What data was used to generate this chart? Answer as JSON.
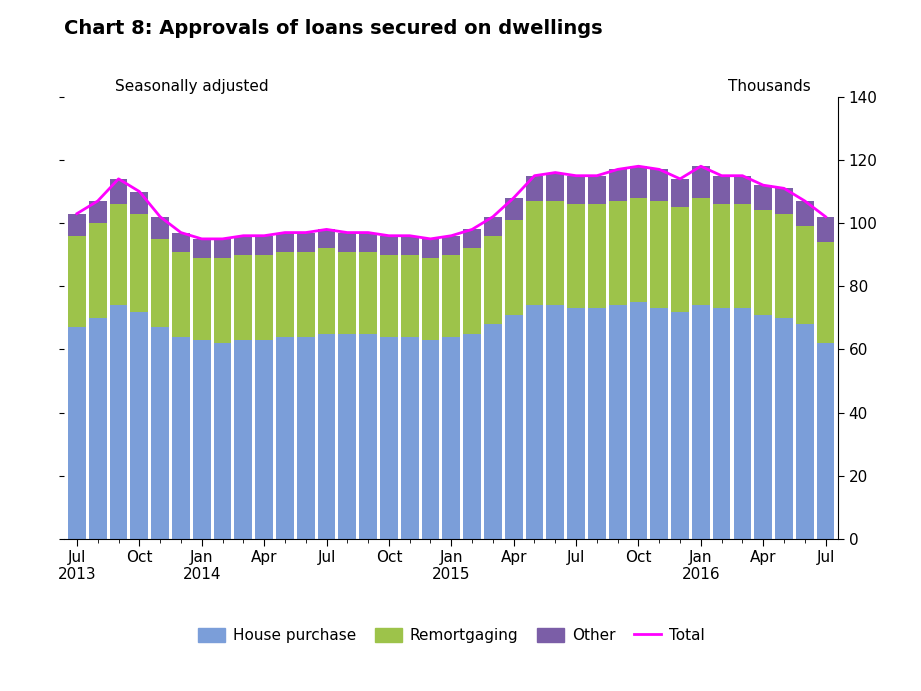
{
  "title": "Chart 8: Approvals of loans secured on dwellings",
  "subtitle": "Seasonally adjusted",
  "right_label": "Thousands",
  "ylim": [
    0,
    140
  ],
  "yticks": [
    0,
    20,
    40,
    60,
    80,
    100,
    120,
    140
  ],
  "tick_labels": [
    "Jul\n2013",
    "Oct",
    "Jan\n2014",
    "Apr",
    "Jul",
    "Oct",
    "Jan\n2015",
    "Apr",
    "Jul",
    "Oct",
    "Jan\n2016",
    "Apr",
    "Jul"
  ],
  "tick_positions": [
    0,
    3,
    6,
    9,
    12,
    15,
    18,
    21,
    24,
    27,
    30,
    33,
    36
  ],
  "house_purchase": [
    67,
    70,
    74,
    72,
    67,
    64,
    63,
    62,
    63,
    63,
    64,
    64,
    65,
    65,
    65,
    64,
    64,
    63,
    64,
    65,
    68,
    71,
    74,
    74,
    73,
    73,
    74,
    75,
    73,
    72,
    74,
    73,
    73,
    71,
    70,
    68,
    62
  ],
  "remortgaging": [
    29,
    30,
    32,
    31,
    28,
    27,
    26,
    27,
    27,
    27,
    27,
    27,
    27,
    26,
    26,
    26,
    26,
    26,
    26,
    27,
    28,
    30,
    33,
    33,
    33,
    33,
    33,
    33,
    34,
    33,
    34,
    33,
    33,
    33,
    33,
    31,
    32
  ],
  "other": [
    7,
    7,
    8,
    7,
    7,
    6,
    6,
    6,
    6,
    6,
    6,
    6,
    6,
    6,
    6,
    6,
    6,
    6,
    6,
    6,
    6,
    7,
    8,
    9,
    9,
    9,
    10,
    10,
    10,
    9,
    10,
    9,
    9,
    8,
    8,
    8,
    8
  ],
  "total": [
    103,
    107,
    114,
    110,
    102,
    97,
    95,
    95,
    96,
    96,
    97,
    97,
    98,
    97,
    97,
    96,
    96,
    95,
    96,
    98,
    102,
    108,
    115,
    116,
    115,
    115,
    117,
    118,
    117,
    114,
    118,
    115,
    115,
    112,
    111,
    107,
    102
  ],
  "bar_color_house": "#7B9ED9",
  "bar_color_remort": "#9DC34A",
  "bar_color_other": "#7B5EA7",
  "line_color_total": "#FF00FF",
  "background_color": "#FFFFFF",
  "n_bars": 37
}
